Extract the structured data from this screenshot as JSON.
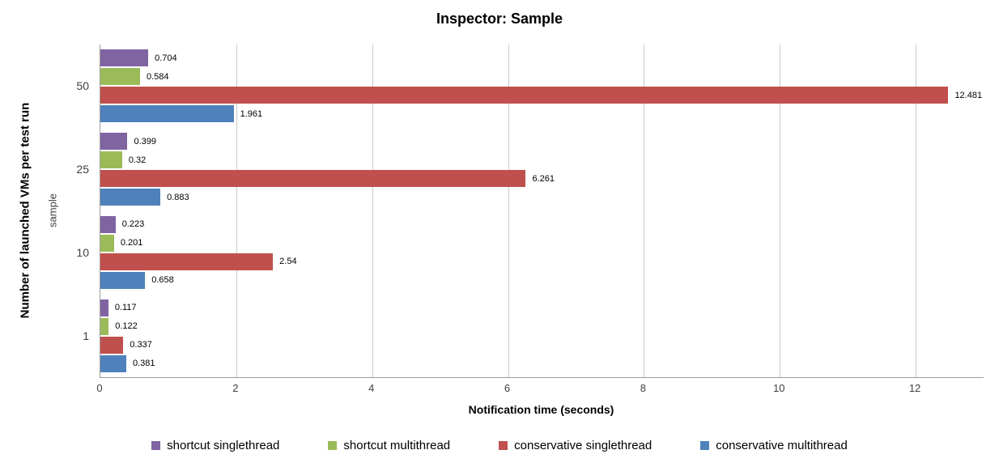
{
  "chart_data": {
    "type": "bar",
    "orientation": "horizontal",
    "title": "Inspector: Sample",
    "xlabel": "Notification time (seconds)",
    "ylabel_outer": "Number of launched VMs per test run",
    "ylabel_inner": "sample",
    "categories": [
      "50",
      "25",
      "10",
      "1"
    ],
    "series": [
      {
        "name": "shortcut singlethread",
        "color": "#8064A2",
        "values": [
          0.704,
          0.399,
          0.223,
          0.117
        ]
      },
      {
        "name": "shortcut multithread",
        "color": "#9BBB59",
        "values": [
          0.584,
          0.32,
          0.201,
          0.122
        ]
      },
      {
        "name": "conservative singlethread",
        "color": "#C0504D",
        "values": [
          12.481,
          6.261,
          2.54,
          0.337
        ]
      },
      {
        "name": "conservative multithread",
        "color": "#4F81BD",
        "values": [
          1.961,
          0.883,
          0.658,
          0.381
        ]
      }
    ],
    "xlim": [
      0,
      13
    ],
    "xticks": [
      0,
      2,
      4,
      6,
      8,
      10,
      12
    ],
    "grid": true,
    "legend_position": "bottom",
    "colors": {
      "axis_line": "#9c9c9c",
      "gridline": "#c9c9c9",
      "tick_text": "#3f3f3f",
      "label_text": "#000000"
    }
  }
}
